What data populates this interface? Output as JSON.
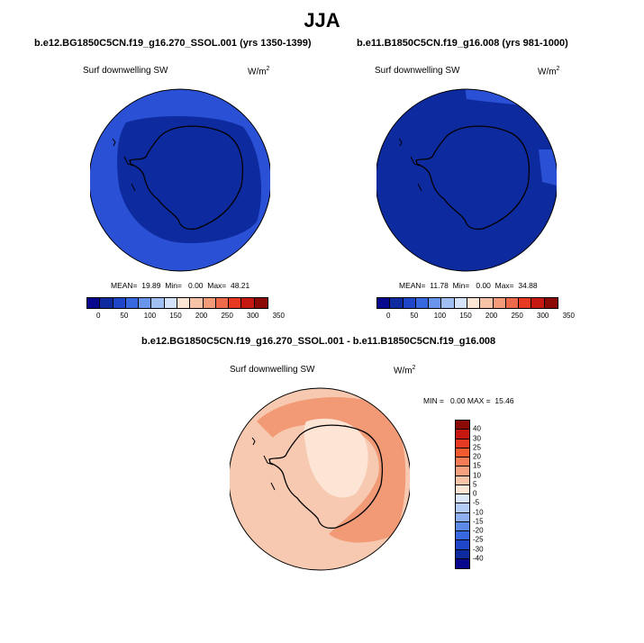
{
  "season": "JJA",
  "panel1": {
    "title": "b.e12.BG1850C5CN.f19_g16.270_SSOL.001 (yrs 1350-1399)",
    "variable": "Surf downwelling SW",
    "units": "W/m",
    "units_sup": "2",
    "stats": "MEAN=  19.89  Min=   0.00  Max=  48.21",
    "colors": {
      "outer": "#2a50d6",
      "inner": "#0d2a9e"
    }
  },
  "panel2": {
    "title": "b.e11.B1850C5CN.f19_g16.008 (yrs 981-1000)",
    "variable": "Surf downwelling SW",
    "units": "W/m",
    "units_sup": "2",
    "stats": "MEAN=  11.78  Min=   0.00  Max=  34.88",
    "colors": {
      "outer": "#2a50d6",
      "inner": "#0d2a9e"
    }
  },
  "diff_panel": {
    "title": "b.e12.BG1850C5CN.f19_g16.270_SSOL.001 - b.e11.B1850C5CN.f19_g16.008",
    "variable": "Surf downwelling SW",
    "units": "W/m",
    "units_sup": "2",
    "stats": "MIN =   0.00 MAX =  15.46",
    "colors": {
      "base": "#f6c9b0",
      "mid": "#f29a76",
      "center": "#fde5d6"
    }
  },
  "colorbar_abs": {
    "labels": [
      "0",
      "50",
      "100",
      "150",
      "200",
      "250",
      "300",
      "350"
    ],
    "colors": [
      "#08088f",
      "#0d2a9e",
      "#1f45c9",
      "#3868e0",
      "#6a95ec",
      "#a0c0f4",
      "#d5e4fa",
      "#fde5d6",
      "#f8c4a8",
      "#f49c7a",
      "#ee6a4a",
      "#e63a22",
      "#c41810",
      "#8b0a05"
    ]
  },
  "colorbar_diff": {
    "labels": [
      "40",
      "30",
      "25",
      "20",
      "15",
      "10",
      "5",
      "0",
      "-5",
      "-10",
      "-15",
      "-20",
      "-25",
      "-30",
      "-40"
    ],
    "colors": [
      "#8b0a05",
      "#c41810",
      "#e63a22",
      "#f25a30",
      "#f47d58",
      "#f5a07e",
      "#f8c4a8",
      "#fde5d6",
      "#dbe8fa",
      "#b4cdf6",
      "#8eb0f0",
      "#5d8ae7",
      "#3868e0",
      "#1f45c9",
      "#0d2a9e",
      "#08088f"
    ]
  }
}
